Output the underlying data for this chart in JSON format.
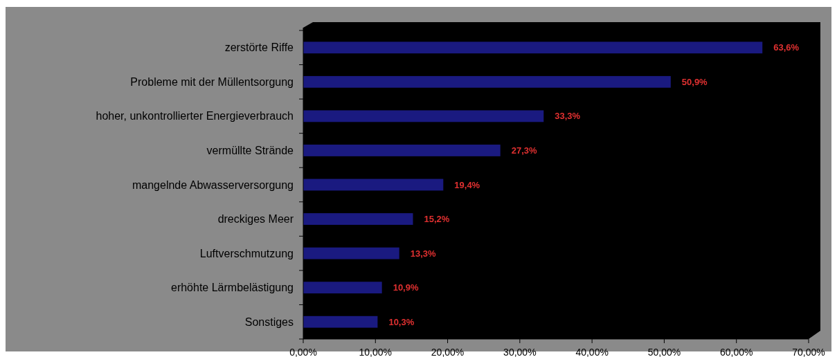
{
  "chart_data": {
    "type": "bar",
    "orientation": "horizontal",
    "categories": [
      "zerstörte Riffe",
      "Probleme mit der Müllentsorgung",
      "hoher, unkontrollierter Energieverbrauch",
      "vermüllte Strände",
      "mangelnde Abwasserversorgung",
      "dreckiges Meer",
      "Luftverschmutzung",
      "erhöhte Lärmbelästigung",
      "Sonstiges"
    ],
    "values": [
      63.6,
      50.9,
      33.3,
      27.3,
      19.4,
      15.2,
      13.3,
      10.9,
      10.3
    ],
    "value_labels": [
      "63,6%",
      "50,9%",
      "33,3%",
      "27,3%",
      "19,4%",
      "15,2%",
      "13,3%",
      "10,9%",
      "10,3%"
    ],
    "color": "#1a1a80",
    "xlim": [
      0,
      70
    ],
    "xticks": [
      {
        "value": 0,
        "label": "0,00%"
      },
      {
        "value": 10,
        "label": "10,00%"
      },
      {
        "value": 20,
        "label": "20,00%"
      },
      {
        "value": 30,
        "label": "30,00%"
      },
      {
        "value": 40,
        "label": "40,00%"
      },
      {
        "value": 50,
        "label": "50,00%"
      },
      {
        "value": 60,
        "label": "60,00%"
      },
      {
        "value": 70,
        "label": "70,00%"
      }
    ],
    "grid": false
  }
}
